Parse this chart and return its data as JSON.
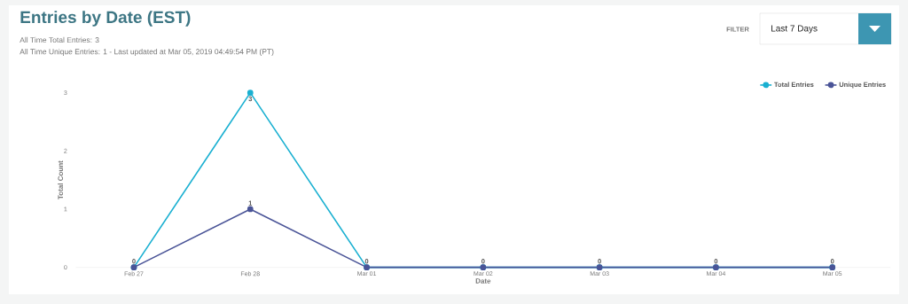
{
  "chart_data": {
    "type": "line",
    "title": "Entries by Date (EST)",
    "subtitle": "All Time Total Entries: 3",
    "annotations": [
      "All Time Unique Entries: 1 - Last updated at Mar 05, 2019 04:49:54 PM (PT)",
      "FILTER",
      "Last 7 Days"
    ],
    "categories": [
      "Feb 27",
      "Feb 28",
      "Mar 01",
      "Mar 02",
      "Mar 03",
      "Mar 04",
      "Mar 05"
    ],
    "xlabel": "Date",
    "ylabel": "Total Count",
    "ylim": [
      0,
      3
    ],
    "yticks": [
      0,
      1,
      2,
      3
    ],
    "series": [
      {
        "name": "Total Entries",
        "color": "#1ab0d1",
        "values": [
          0,
          3,
          0,
          0,
          0,
          0,
          0
        ],
        "value_labels": [
          null,
          "3",
          null,
          null,
          null,
          null,
          null
        ]
      },
      {
        "name": "Unique Entries",
        "color": "#4a5497",
        "values": [
          0,
          1,
          0,
          0,
          0,
          0,
          0
        ],
        "value_labels": [
          "0",
          "1",
          "0",
          "0",
          "0",
          "0",
          "0"
        ]
      }
    ],
    "marker": "circle",
    "legend": "top right",
    "grid": false
  }
}
